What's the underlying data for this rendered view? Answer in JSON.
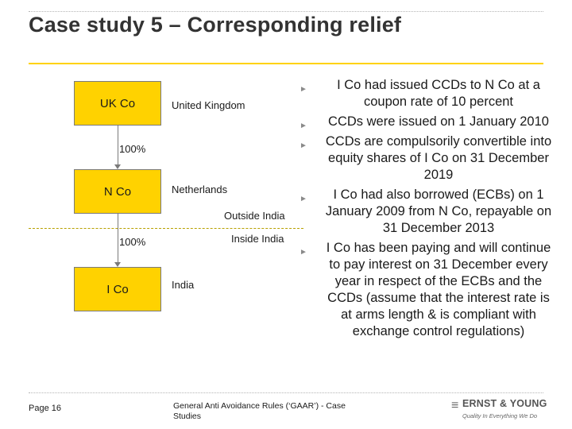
{
  "title": "Case study 5 – Corresponding relief",
  "diagram": {
    "entities": [
      {
        "name": "UK Co",
        "country": "United Kingdom"
      },
      {
        "name": "N Co",
        "country": "Netherlands"
      },
      {
        "name": "I Co",
        "country": "India"
      }
    ],
    "ownership": [
      "100%",
      "100%"
    ],
    "boundary": {
      "outside": "Outside India",
      "inside": "Inside India"
    }
  },
  "bullets": [
    "I Co had issued CCDs to N Co at a coupon rate of 10 percent",
    "CCDs were issued on 1 January 2010",
    "CCDs are compulsorily convertible into equity shares of I Co on 31 December 2019",
    "I Co had also borrowed (ECBs) on 1 January 2009 from N Co, repayable on 31 December 2013",
    "I Co has been paying and will continue to pay interest on 31 December every year in respect of the ECBs and the CCDs (assume that the interest rate is at arms length & is compliant with exchange control regulations)"
  ],
  "footer": {
    "page": "Page 16",
    "text": "General Anti Avoidance Rules (‘GAAR’) - Case Studies",
    "logo_name": "ERNST & YOUNG",
    "logo_tagline": "Quality In Everything We Do"
  },
  "colors": {
    "accent": "#ffd200",
    "bullet": "#8a8a8a"
  }
}
